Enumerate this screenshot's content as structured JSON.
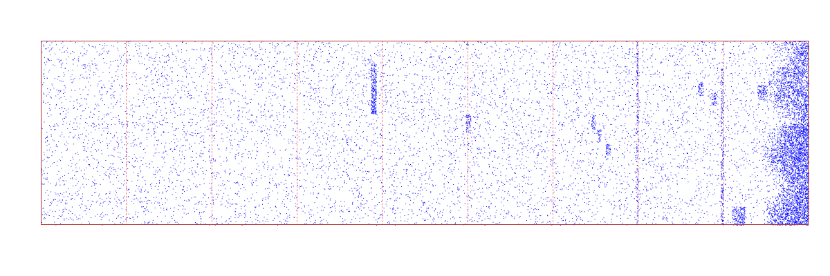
{
  "colors": {
    "background": "#ffffff",
    "frame": "#b03030",
    "divider": "#ff8080",
    "points": "#0000ff"
  },
  "chart_data": {
    "type": "scatter",
    "title": "",
    "xlabel": "",
    "ylabel": "",
    "tick_labels_shown": false,
    "grid": false,
    "legend": "none",
    "xlim": [
      0,
      9
    ],
    "ylim": [
      0,
      1
    ],
    "vertical_dividers_x": [
      1,
      2,
      3,
      4,
      5,
      6,
      7,
      8
    ],
    "background_noise": {
      "density": "uniform sparse",
      "approx_points": 9000
    },
    "clusters": [
      {
        "label": "dense-column",
        "x": [
          3.87,
          3.93
        ],
        "y": [
          0.6,
          0.88
        ]
      },
      {
        "label": "small-streak",
        "x": [
          4.98,
          5.04
        ],
        "y": [
          0.5,
          0.6
        ]
      },
      {
        "label": "blob-1",
        "x": [
          6.45,
          6.5
        ],
        "y": [
          0.52,
          0.6
        ]
      },
      {
        "label": "blob-2",
        "x": [
          6.52,
          6.56
        ],
        "y": [
          0.45,
          0.52
        ]
      },
      {
        "label": "blob-3",
        "x": [
          6.62,
          6.68
        ],
        "y": [
          0.38,
          0.44
        ]
      },
      {
        "label": "vertical-line-near-x7",
        "x": [
          6.98,
          7.0
        ],
        "y": [
          0.0,
          1.0
        ]
      },
      {
        "label": "vertical-line-near-x8",
        "x": [
          7.97,
          8.0
        ],
        "y": [
          0.0,
          0.85
        ]
      },
      {
        "label": "blob-4",
        "x": [
          7.7,
          7.76
        ],
        "y": [
          0.7,
          0.77
        ]
      },
      {
        "label": "blob-5",
        "x": [
          7.86,
          7.92
        ],
        "y": [
          0.65,
          0.72
        ]
      },
      {
        "label": "blob-6",
        "x": [
          8.4,
          8.5
        ],
        "y": [
          0.68,
          0.76
        ]
      },
      {
        "label": "dense-region-right",
        "x": [
          8.45,
          9.0
        ],
        "y": [
          0.0,
          1.0
        ]
      },
      {
        "label": "bottom-patch",
        "x": [
          8.1,
          8.25
        ],
        "y": [
          0.0,
          0.1
        ]
      }
    ]
  }
}
